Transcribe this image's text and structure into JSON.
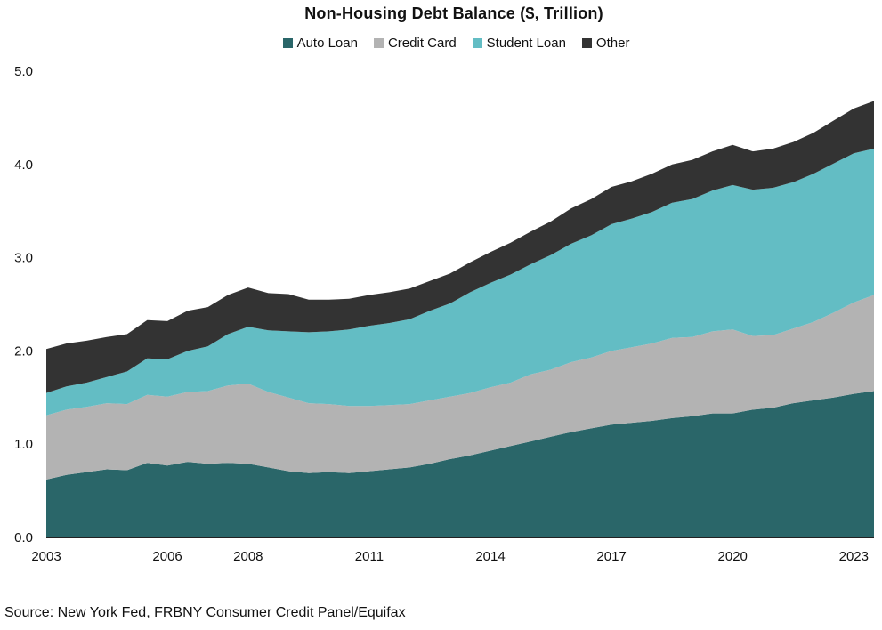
{
  "chart_data": {
    "type": "area",
    "stacked": true,
    "title": "Non-Housing Debt Balance ($, Trillion)",
    "xlabel": "",
    "ylabel": "",
    "ylim": [
      0,
      5
    ],
    "yticks": [
      "0.0",
      "1.0",
      "2.0",
      "3.0",
      "4.0",
      "5.0"
    ],
    "xticks": [
      "2003",
      "2006",
      "2008",
      "2011",
      "2014",
      "2017",
      "2020",
      "2023"
    ],
    "grid": false,
    "legend_position": "top-center",
    "source": "Source: New York Fed, FRBNY Consumer Credit Panel/Equifax",
    "x": [
      2003.0,
      2003.5,
      2004.0,
      2004.5,
      2005.0,
      2005.5,
      2006.0,
      2006.5,
      2007.0,
      2007.5,
      2008.0,
      2008.5,
      2009.0,
      2009.5,
      2010.0,
      2010.5,
      2011.0,
      2011.5,
      2012.0,
      2012.5,
      2013.0,
      2013.5,
      2014.0,
      2014.5,
      2015.0,
      2015.5,
      2016.0,
      2016.5,
      2017.0,
      2017.5,
      2018.0,
      2018.5,
      2019.0,
      2019.5,
      2020.0,
      2020.5,
      2021.0,
      2021.5,
      2022.0,
      2022.5,
      2023.0,
      2023.5
    ],
    "series": [
      {
        "name": "Auto Loan",
        "color": "#2a6669",
        "values": [
          0.62,
          0.67,
          0.7,
          0.73,
          0.72,
          0.8,
          0.77,
          0.81,
          0.79,
          0.8,
          0.79,
          0.75,
          0.71,
          0.69,
          0.7,
          0.69,
          0.71,
          0.73,
          0.75,
          0.79,
          0.84,
          0.88,
          0.93,
          0.98,
          1.03,
          1.08,
          1.13,
          1.17,
          1.21,
          1.23,
          1.25,
          1.28,
          1.3,
          1.33,
          1.33,
          1.37,
          1.39,
          1.44,
          1.47,
          1.5,
          1.54,
          1.57
        ]
      },
      {
        "name": "Credit Card",
        "color": "#b3b3b3",
        "values": [
          0.69,
          0.7,
          0.7,
          0.71,
          0.71,
          0.73,
          0.74,
          0.75,
          0.78,
          0.83,
          0.86,
          0.81,
          0.79,
          0.75,
          0.73,
          0.72,
          0.7,
          0.69,
          0.68,
          0.68,
          0.67,
          0.67,
          0.68,
          0.68,
          0.72,
          0.72,
          0.75,
          0.76,
          0.79,
          0.81,
          0.83,
          0.86,
          0.85,
          0.88,
          0.9,
          0.79,
          0.78,
          0.8,
          0.84,
          0.91,
          0.98,
          1.03
        ]
      },
      {
        "name": "Student Loan",
        "color": "#63bdc4",
        "values": [
          0.24,
          0.25,
          0.26,
          0.28,
          0.35,
          0.39,
          0.4,
          0.44,
          0.48,
          0.55,
          0.61,
          0.66,
          0.71,
          0.76,
          0.78,
          0.82,
          0.86,
          0.88,
          0.91,
          0.96,
          1.0,
          1.08,
          1.12,
          1.16,
          1.18,
          1.23,
          1.27,
          1.31,
          1.36,
          1.38,
          1.41,
          1.45,
          1.48,
          1.51,
          1.55,
          1.57,
          1.58,
          1.57,
          1.59,
          1.6,
          1.6,
          1.57
        ]
      },
      {
        "name": "Other",
        "color": "#333333",
        "values": [
          0.47,
          0.46,
          0.45,
          0.43,
          0.4,
          0.41,
          0.41,
          0.43,
          0.42,
          0.42,
          0.42,
          0.4,
          0.4,
          0.35,
          0.34,
          0.33,
          0.33,
          0.33,
          0.33,
          0.32,
          0.32,
          0.32,
          0.33,
          0.34,
          0.35,
          0.36,
          0.38,
          0.39,
          0.4,
          0.4,
          0.41,
          0.41,
          0.42,
          0.42,
          0.43,
          0.41,
          0.42,
          0.43,
          0.44,
          0.46,
          0.48,
          0.51
        ]
      }
    ]
  }
}
